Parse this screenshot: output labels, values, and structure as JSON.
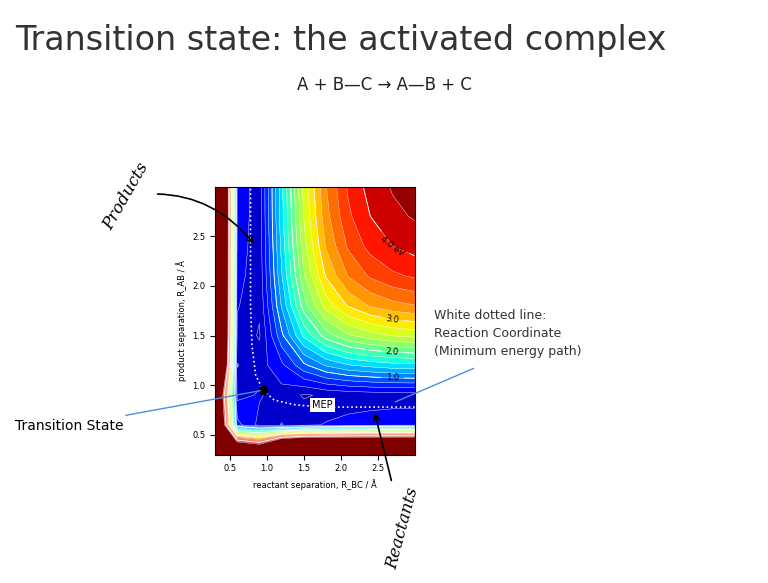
{
  "title": "Transition state: the activated complex",
  "equation": "A + B—C → A—B + C",
  "chart_data": {
    "type": "contour",
    "xlabel": "reactant separation, R_BC / Å",
    "ylabel": "product separation, R_AB / Å",
    "x": [
      0.3,
      0.6,
      0.9,
      1.2,
      1.5,
      1.8,
      2.1,
      2.4,
      2.7,
      3.0
    ],
    "y": [
      0.3,
      0.6,
      0.9,
      1.2,
      1.5,
      1.8,
      2.1,
      2.4,
      2.7,
      3.0
    ],
    "values": [
      [
        10,
        7.2,
        6.6,
        9.4,
        10,
        10,
        10,
        10,
        10,
        10
      ],
      [
        7.2,
        0.67,
        0.34,
        0.19,
        0.33,
        0.42,
        0.48,
        0.51,
        0.53,
        0.54
      ],
      [
        6.6,
        0.34,
        0.42,
        0.31,
        0.18,
        0.23,
        0.26,
        0.28,
        0.29,
        0.29
      ],
      [
        9.4,
        0.19,
        0.31,
        0.55,
        0.95,
        1.22,
        1.38,
        1.46,
        1.52,
        1.54
      ],
      [
        10,
        0.33,
        0.18,
        0.95,
        1.64,
        2.1,
        2.37,
        2.52,
        2.61,
        2.66
      ],
      [
        10,
        0.42,
        0.23,
        1.22,
        2.1,
        2.68,
        3.02,
        3.22,
        3.33,
        3.39
      ],
      [
        10,
        0.48,
        0.26,
        1.38,
        2.37,
        3.02,
        3.41,
        3.63,
        3.76,
        3.83
      ],
      [
        10,
        0.51,
        0.28,
        1.46,
        2.52,
        3.22,
        3.63,
        3.87,
        4.0,
        4.08
      ],
      [
        10,
        0.53,
        0.29,
        1.52,
        2.61,
        3.33,
        3.76,
        4.0,
        4.15,
        4.22
      ],
      [
        10,
        0.54,
        0.29,
        1.54,
        2.66,
        3.39,
        3.83,
        4.08,
        4.22,
        4.3
      ]
    ],
    "levels": [
      0.0,
      0.2,
      0.4,
      0.6,
      0.8,
      1.0,
      1.2,
      1.4,
      1.6,
      1.8,
      2.0,
      2.2,
      2.4,
      2.6,
      2.8,
      3.0,
      3.2,
      3.4,
      3.6,
      3.8,
      4.0,
      4.2,
      4.4
    ],
    "contour_labels": [
      {
        "value": 4.0,
        "label": "4.0 eV"
      },
      {
        "value": 3.0,
        "label": "3.0"
      },
      {
        "value": 2.0,
        "label": "2.0"
      },
      {
        "value": 1.0,
        "label": "1.0"
      }
    ],
    "xlim": [
      0.3,
      3.0
    ],
    "ylim": [
      0.3,
      3.0
    ],
    "xticks": [
      0.5,
      1.0,
      1.5,
      2.0,
      2.5
    ],
    "yticks": [
      0.5,
      1.0,
      1.5,
      2.0,
      2.5
    ],
    "mep": {
      "label": "MEP",
      "color": "#ffffff",
      "line_style": "dotted",
      "x": [
        3.0,
        2.4,
        1.8,
        1.4,
        1.1,
        0.95,
        0.85,
        0.8,
        0.78,
        0.78,
        0.78
      ],
      "y": [
        0.78,
        0.78,
        0.78,
        0.8,
        0.85,
        0.95,
        1.1,
        1.4,
        1.8,
        2.4,
        3.0
      ]
    },
    "transition_state": {
      "label": "Transition State",
      "x": 0.95,
      "y": 0.95,
      "color": "#000000",
      "marker": "o"
    },
    "annotations": {
      "products": {
        "label": "Products",
        "x": 0.85,
        "y": 2.4
      },
      "reactants": {
        "label": "Reactants",
        "x": 2.45,
        "y": 0.75
      },
      "reaction_coordinate": {
        "label": "White dotted line:\nReaction Coordinate\n(Minimum energy path)",
        "x": 2.7,
        "y": 0.82
      }
    }
  }
}
